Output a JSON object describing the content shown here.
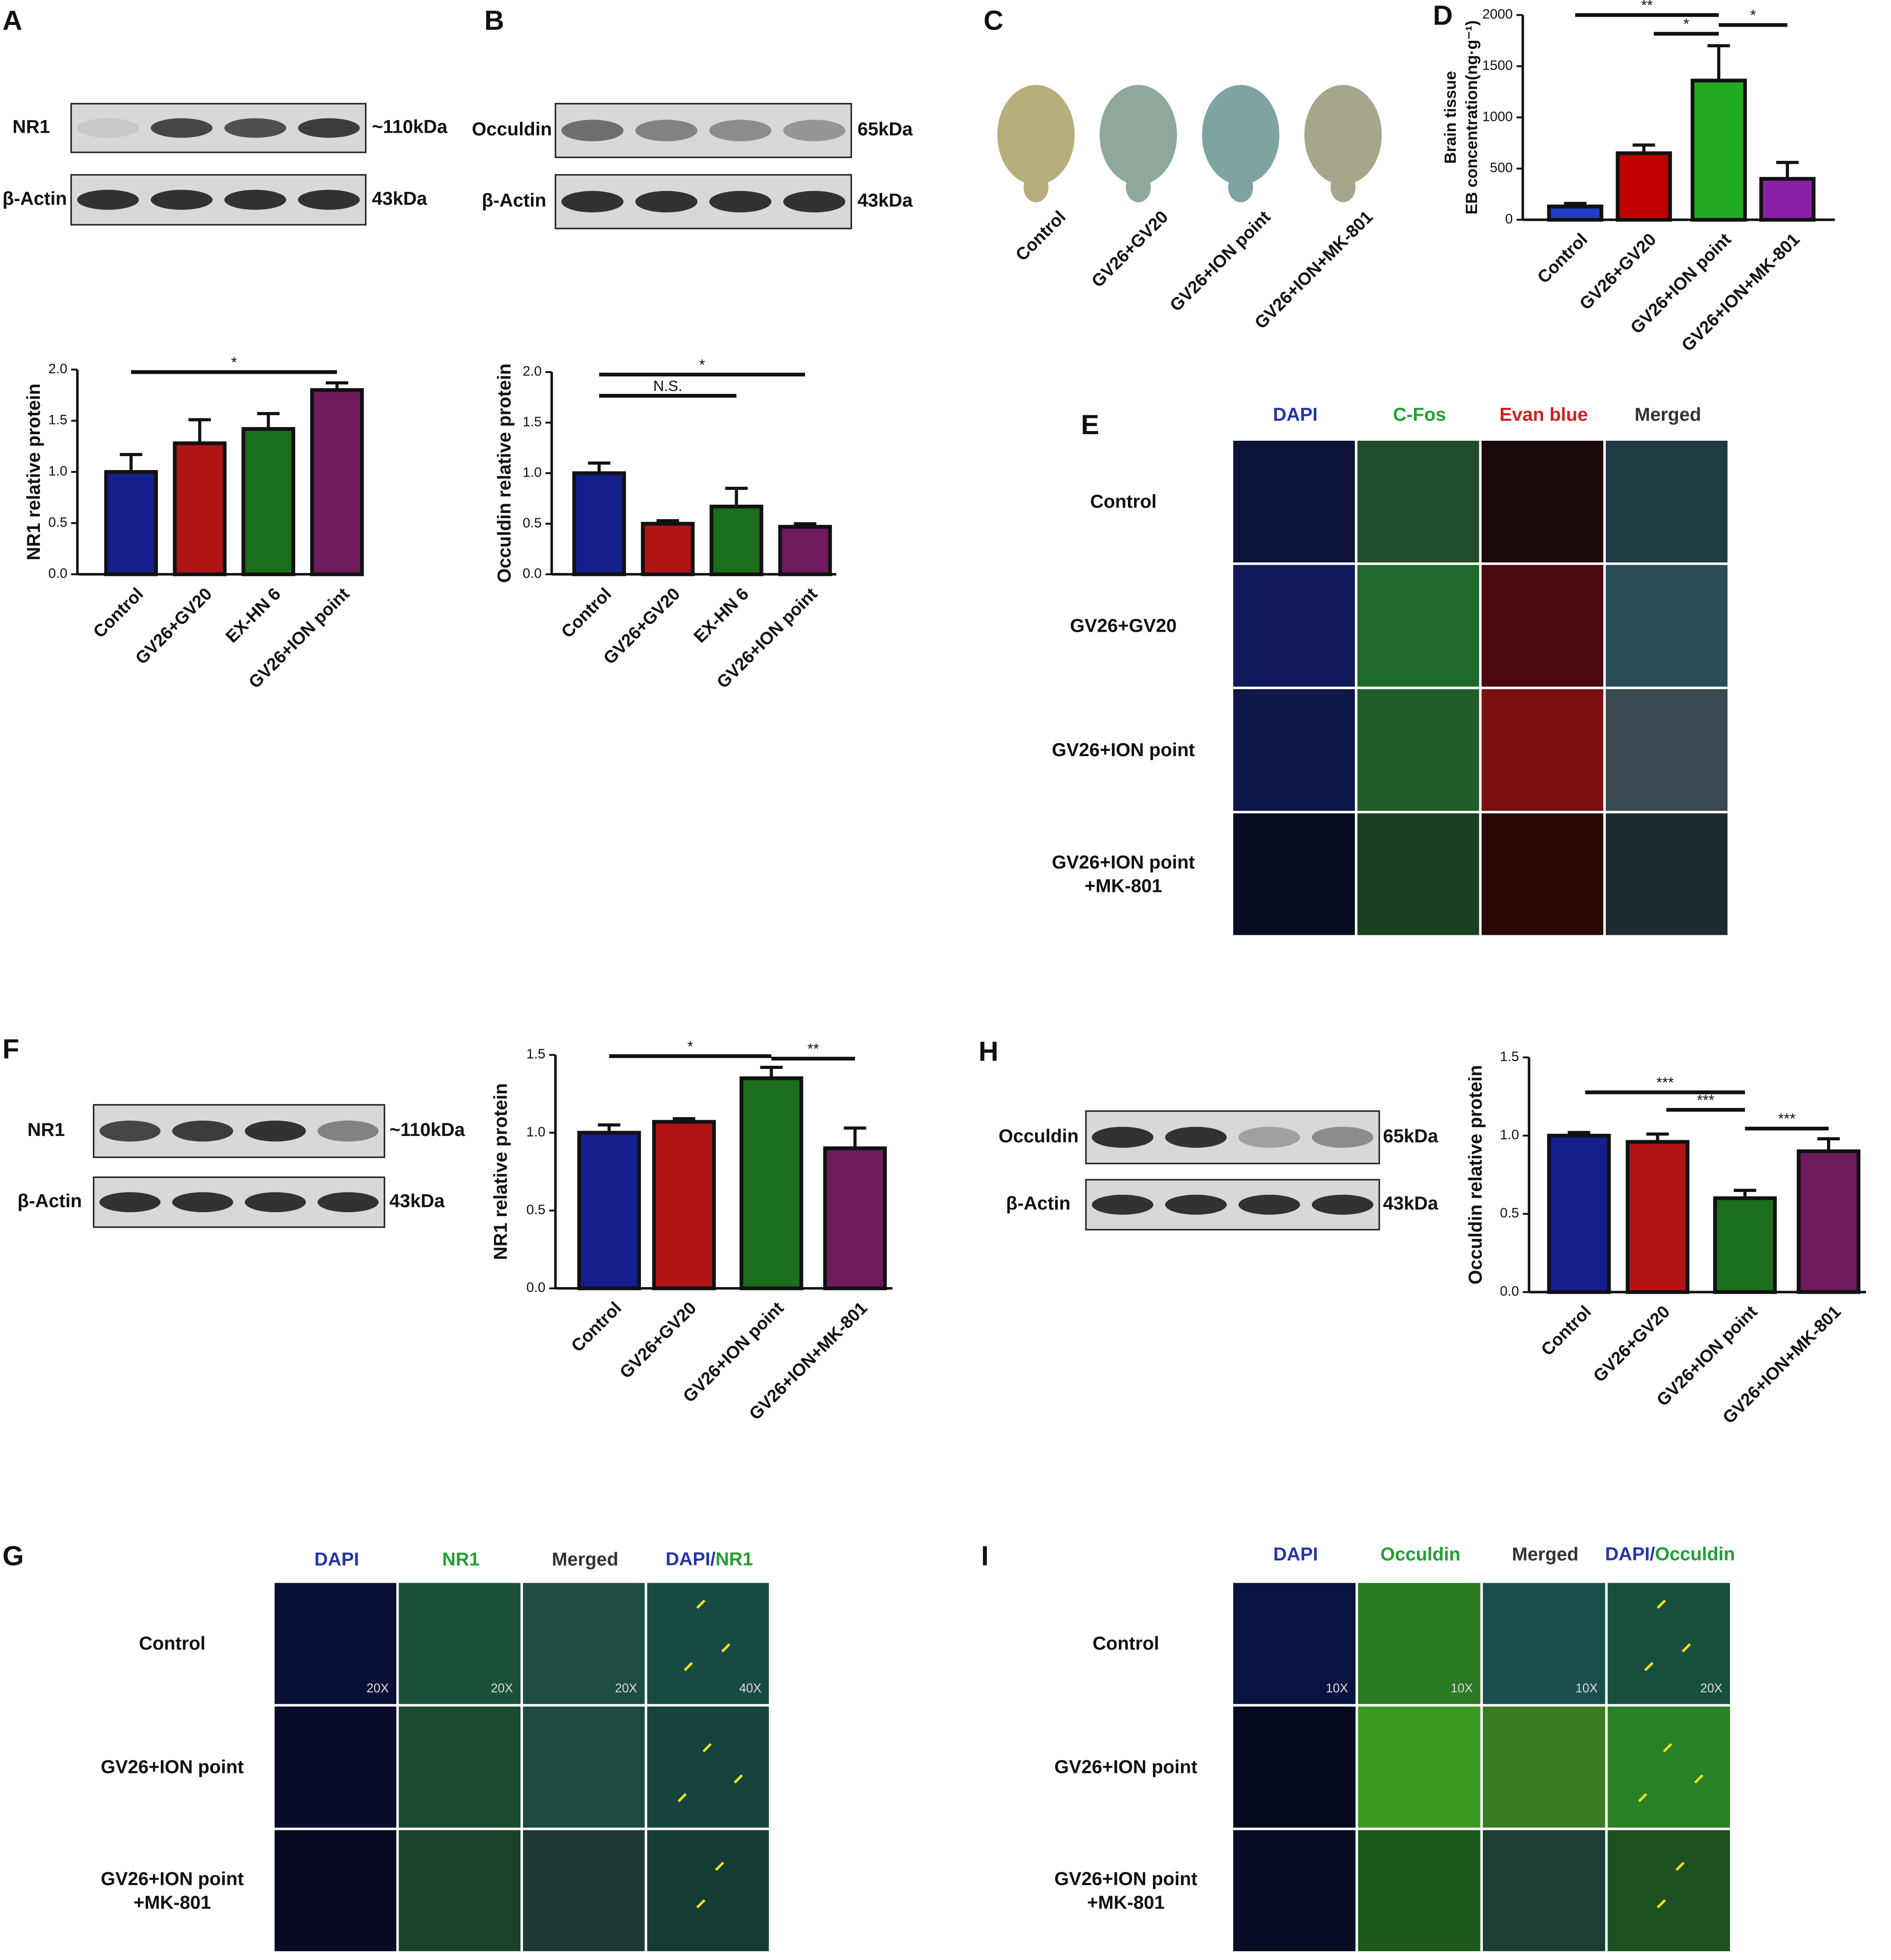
{
  "panels": [
    "A",
    "B",
    "C",
    "D",
    "E",
    "F",
    "G",
    "H",
    "I"
  ],
  "blots": [
    {
      "rows": [
        {
          "name": "NR1",
          "size": "~110kDa"
        },
        {
          "name": "β-Actin",
          "size": "43kDa"
        }
      ]
    },
    {
      "rows": [
        {
          "name": "Occuldin",
          "size": "65kDa"
        },
        {
          "name": "β-Actin",
          "size": "43kDa"
        }
      ]
    },
    {
      "rows": [
        {
          "name": "NR1",
          "size": "~110kDa"
        },
        {
          "name": "β-Actin",
          "size": "43kDa"
        }
      ]
    },
    {
      "rows": [
        {
          "name": "Occuldin",
          "size": "65kDa"
        },
        {
          "name": "β-Actin",
          "size": "43kDa"
        }
      ]
    }
  ],
  "brains": {
    "labels": [
      "Control",
      "GV26+GV20",
      "GV26+ION point",
      "GV26+ION+MK-801"
    ]
  },
  "micrographs": [
    {
      "headers": [
        "DAPI",
        "C-Fos",
        "Evan blue",
        "Merged"
      ],
      "rows": [
        [
          "Control"
        ],
        [
          "GV26+GV20"
        ],
        [
          "GV26+ION point"
        ],
        [
          "GV26+ION point",
          "+MK-801"
        ]
      ]
    },
    {
      "headers": [
        "DAPI",
        "NR1",
        "Merged"
      ],
      "merged_header": [
        "DAPI/",
        "NR1"
      ],
      "rows": [
        [
          "Control"
        ],
        [
          "GV26+ION point"
        ],
        [
          "GV26+ION point",
          "+MK-801"
        ]
      ],
      "magnifications": [
        "20X",
        "20X",
        "20X",
        "40X"
      ]
    },
    {
      "headers": [
        "DAPI",
        "Occuldin",
        "Merged"
      ],
      "merged_header": [
        "DAPI/",
        "Occuldin"
      ],
      "rows": [
        [
          "Control"
        ],
        [
          "GV26+ION point"
        ],
        [
          "GV26+ION point",
          "+MK-801"
        ]
      ],
      "magnifications": [
        "10X",
        "10X",
        "10X",
        "20X"
      ]
    }
  ],
  "chart_data": [
    {
      "type": "bar",
      "y_label": [
        "NR1 relative protein"
      ],
      "categories": [
        "Control",
        "GV26+GV20",
        "EX-HN 6",
        "GV26+ION point"
      ],
      "values": [
        1.0,
        1.28,
        1.42,
        1.8
      ],
      "errors": [
        0.17,
        0.23,
        0.15,
        0.07
      ],
      "colors": [
        "#141e8c",
        "#b01414",
        "#1b6e1b",
        "#6e1a5c"
      ],
      "ylim": [
        0,
        2
      ],
      "yticks": [
        {
          "value": 0,
          "label": "0.0"
        },
        0.5,
        {
          "value": 1,
          "label": "1.0"
        },
        1.5,
        {
          "value": 2,
          "label": "2.0"
        }
      ],
      "annotations": [
        "*"
      ]
    },
    {
      "type": "bar",
      "y_label": [
        "Occuldin relative protein"
      ],
      "categories": [
        "Control",
        "GV26+GV20",
        "EX-HN 6",
        "GV26+ION point"
      ],
      "values": [
        1.0,
        0.5,
        0.67,
        0.47
      ],
      "errors": [
        0.1,
        0.03,
        0.18,
        0.03
      ],
      "colors": [
        "#141e8c",
        "#b01414",
        "#1b6e1b",
        "#6e1a5c"
      ],
      "ylim": [
        0,
        2
      ],
      "yticks": [
        {
          "value": 0,
          "label": "0.0"
        },
        0.5,
        {
          "value": 1,
          "label": "1.0"
        },
        1.5,
        {
          "value": 2,
          "label": "2.0"
        }
      ],
      "annotations": [
        "N.S.",
        "*"
      ]
    },
    {
      "type": "bar",
      "y_label": [
        "Brain tissue",
        "EB concentration(ng·g⁻¹)"
      ],
      "categories": [
        "Control",
        "GV26+GV20",
        "GV26+ION point",
        "GV26+ION+MK-801"
      ],
      "values": [
        130,
        650,
        1360,
        400
      ],
      "errors": [
        30,
        80,
        340,
        160
      ],
      "colors": [
        "#1f3fbf",
        "#c00000",
        "#22aa22",
        "#8a1fa8"
      ],
      "ylim": [
        0,
        2000
      ],
      "yticks": [
        0,
        500,
        1000,
        1500,
        2000
      ],
      "annotations": [
        "**",
        "*",
        "*"
      ]
    },
    {
      "type": "bar",
      "y_label": [
        "NR1 relative protein"
      ],
      "categories": [
        "Control",
        "GV26+GV20",
        "GV26+ION point",
        "GV26+ION+MK-801"
      ],
      "values": [
        1.0,
        1.07,
        1.35,
        0.9
      ],
      "errors": [
        0.05,
        0.02,
        0.07,
        0.13
      ],
      "colors": [
        "#141e8c",
        "#b01414",
        "#1b6e1b",
        "#6e1a5c"
      ],
      "ylim": [
        0,
        1.5
      ],
      "yticks": [
        {
          "value": 0,
          "label": "0.0"
        },
        0.5,
        {
          "value": 1,
          "label": "1.0"
        },
        1.5
      ],
      "annotations": [
        "*",
        "**"
      ]
    },
    {
      "type": "bar",
      "y_label": [
        "Occuldin relative protein"
      ],
      "categories": [
        "Control",
        "GV26+GV20",
        "GV26+ION point",
        "GV26+ION+MK-801"
      ],
      "values": [
        1.0,
        0.96,
        0.6,
        0.9
      ],
      "errors": [
        0.02,
        0.05,
        0.05,
        0.08
      ],
      "colors": [
        "#141e8c",
        "#b01414",
        "#1b6e1b",
        "#6e1a5c"
      ],
      "ylim": [
        0,
        1.5
      ],
      "yticks": [
        {
          "value": 0,
          "label": "0.0"
        },
        0.5,
        {
          "value": 1,
          "label": "1.0"
        },
        1.5
      ],
      "annotations": [
        "***",
        "***",
        "***"
      ]
    }
  ]
}
